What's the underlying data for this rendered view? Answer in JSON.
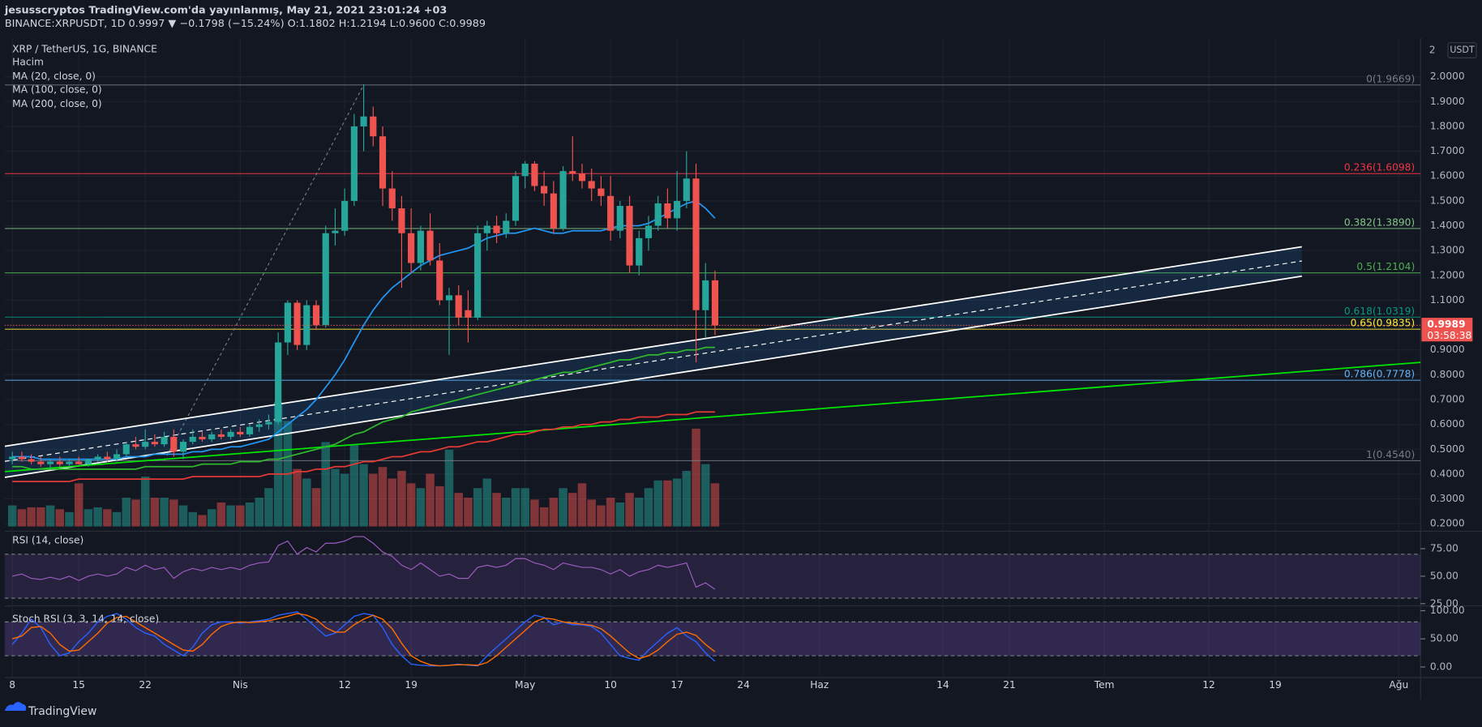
{
  "header": {
    "line1": "jesusscryptos TradingView.com'da yayınlanmış, May 21, 2021 23:01:24 +03",
    "line2": "BINANCE:XRPUSDT, 1D 0.9997 ▼ −0.1798 (−15.24%) O:1.1802 H:1.2194 L:0.9600 C:0.9989"
  },
  "chart_data": {
    "type": "candlestick",
    "title": "XRP / TetherUS, 1G, BINANCE",
    "y_axis_mode": "2",
    "y_axis_unit": "USDT",
    "grid": true,
    "up_color": "#26a69a",
    "down_color": "#ef5350",
    "xlim": [
      -0.8,
      148.3
    ],
    "xticks": [
      {
        "value": 0,
        "label": "8"
      },
      {
        "value": 7,
        "label": "15"
      },
      {
        "value": 14,
        "label": "22"
      },
      {
        "value": 24,
        "label": "Nis"
      },
      {
        "value": 35,
        "label": "12"
      },
      {
        "value": 42,
        "label": "19"
      },
      {
        "value": 54,
        "label": "May"
      },
      {
        "value": 63,
        "label": "10"
      },
      {
        "value": 70,
        "label": "17"
      },
      {
        "value": 77,
        "label": "24"
      },
      {
        "value": 85,
        "label": "Haz"
      },
      {
        "value": 98,
        "label": "14"
      },
      {
        "value": 105,
        "label": "21"
      },
      {
        "value": 115,
        "label": "Tem"
      },
      {
        "value": 126,
        "label": "12"
      },
      {
        "value": 133,
        "label": "19"
      },
      {
        "value": 146,
        "label": "Ağu"
      }
    ],
    "ylim": [
      0.17,
      2.156
    ],
    "yticks": [
      {
        "value": 0.2,
        "label": "0.2000"
      },
      {
        "value": 0.3,
        "label": "0.3000"
      },
      {
        "value": 0.4,
        "label": "0.4000"
      },
      {
        "value": 0.5,
        "label": "0.5000"
      },
      {
        "value": 0.6,
        "label": "0.6000"
      },
      {
        "value": 0.7,
        "label": "0.7000"
      },
      {
        "value": 0.8,
        "label": "0.8000"
      },
      {
        "value": 0.9,
        "label": "0.9000"
      },
      {
        "value": 1.0,
        "label": "1.0000"
      },
      {
        "value": 1.1,
        "label": "1.1000"
      },
      {
        "value": 1.2,
        "label": "1.2000"
      },
      {
        "value": 1.3,
        "label": "1.3000"
      },
      {
        "value": 1.4,
        "label": "1.4000"
      },
      {
        "value": 1.5,
        "label": "1.5000"
      },
      {
        "value": 1.6,
        "label": "1.6000"
      },
      {
        "value": 1.7,
        "label": "1.7000"
      },
      {
        "value": 1.8,
        "label": "1.8000"
      },
      {
        "value": 1.9,
        "label": "1.9000"
      },
      {
        "value": 2.0,
        "label": "2.0000"
      }
    ],
    "x": [
      0,
      1,
      2,
      3,
      4,
      5,
      6,
      7,
      8,
      9,
      10,
      11,
      12,
      13,
      14,
      15,
      16,
      17,
      18,
      19,
      20,
      21,
      22,
      23,
      24,
      25,
      26,
      27,
      28,
      29,
      30,
      31,
      32,
      33,
      34,
      35,
      36,
      37,
      38,
      39,
      40,
      41,
      42,
      43,
      44,
      45,
      46,
      47,
      48,
      49,
      50,
      51,
      52,
      53,
      54,
      55,
      56,
      57,
      58,
      59,
      60,
      61,
      62,
      63,
      64,
      65,
      66,
      67,
      68,
      69,
      70,
      71,
      72,
      73,
      74
    ],
    "open": [
      0.46,
      0.47,
      0.46,
      0.45,
      0.44,
      0.45,
      0.44,
      0.45,
      0.44,
      0.46,
      0.47,
      0.46,
      0.48,
      0.52,
      0.51,
      0.53,
      0.52,
      0.55,
      0.49,
      0.53,
      0.55,
      0.54,
      0.56,
      0.55,
      0.57,
      0.56,
      0.59,
      0.6,
      0.61,
      0.93,
      1.09,
      0.92,
      1.08,
      1.0,
      1.37,
      1.38,
      1.5,
      1.8,
      1.84,
      1.76,
      1.55,
      1.47,
      1.37,
      1.25,
      1.38,
      1.26,
      1.1,
      1.12,
      1.06,
      1.03,
      1.37,
      1.4,
      1.37,
      1.42,
      1.6,
      1.65,
      1.56,
      1.53,
      1.39,
      1.62,
      1.61,
      1.58,
      1.55,
      1.52,
      1.38,
      1.48,
      1.24,
      1.35,
      1.4,
      1.49,
      1.43,
      1.5,
      1.59,
      1.06,
      1.1802
    ],
    "high": [
      0.49,
      0.49,
      0.48,
      0.47,
      0.46,
      0.47,
      0.46,
      0.47,
      0.46,
      0.48,
      0.49,
      0.5,
      0.53,
      0.55,
      0.58,
      0.56,
      0.57,
      0.58,
      0.54,
      0.58,
      0.57,
      0.57,
      0.58,
      0.58,
      0.59,
      0.6,
      0.62,
      0.64,
      0.97,
      1.1,
      1.1,
      1.1,
      1.1,
      1.4,
      1.47,
      1.55,
      1.85,
      1.97,
      1.88,
      1.8,
      1.62,
      1.52,
      1.47,
      1.4,
      1.45,
      1.33,
      1.15,
      1.16,
      1.14,
      1.4,
      1.42,
      1.44,
      1.45,
      1.62,
      1.66,
      1.66,
      1.62,
      1.58,
      1.64,
      1.76,
      1.65,
      1.63,
      1.6,
      1.6,
      1.5,
      1.52,
      1.38,
      1.44,
      1.52,
      1.55,
      1.62,
      1.7,
      1.65,
      1.25,
      1.2194
    ],
    "low": [
      0.44,
      0.45,
      0.44,
      0.43,
      0.42,
      0.43,
      0.43,
      0.44,
      0.43,
      0.45,
      0.45,
      0.45,
      0.47,
      0.5,
      0.5,
      0.51,
      0.51,
      0.47,
      0.46,
      0.52,
      0.53,
      0.53,
      0.54,
      0.54,
      0.55,
      0.55,
      0.57,
      0.58,
      0.6,
      0.88,
      0.9,
      0.9,
      0.98,
      0.99,
      1.32,
      1.36,
      1.48,
      1.7,
      1.72,
      1.48,
      1.42,
      1.15,
      1.21,
      1.22,
      1.24,
      1.08,
      0.88,
      1.0,
      0.93,
      1.02,
      1.3,
      1.33,
      1.35,
      1.4,
      1.55,
      1.54,
      1.48,
      1.37,
      1.38,
      1.58,
      1.55,
      1.5,
      1.48,
      1.34,
      1.35,
      1.21,
      1.2,
      1.3,
      1.38,
      1.39,
      1.38,
      1.47,
      0.85,
      0.95,
      0.96
    ],
    "close": [
      0.47,
      0.46,
      0.45,
      0.44,
      0.45,
      0.44,
      0.45,
      0.44,
      0.46,
      0.47,
      0.46,
      0.48,
      0.52,
      0.51,
      0.53,
      0.52,
      0.55,
      0.49,
      0.53,
      0.55,
      0.54,
      0.56,
      0.55,
      0.57,
      0.56,
      0.59,
      0.6,
      0.61,
      0.93,
      1.09,
      0.92,
      1.08,
      1.0,
      1.37,
      1.38,
      1.5,
      1.8,
      1.84,
      1.76,
      1.55,
      1.47,
      1.37,
      1.25,
      1.38,
      1.26,
      1.1,
      1.12,
      1.03,
      1.03,
      1.37,
      1.4,
      1.37,
      1.42,
      1.6,
      1.65,
      1.56,
      1.53,
      1.39,
      1.62,
      1.61,
      1.58,
      1.55,
      1.52,
      1.38,
      1.48,
      1.24,
      1.35,
      1.4,
      1.49,
      1.43,
      1.5,
      1.59,
      1.06,
      1.18,
      0.9989
    ],
    "volume": {
      "name": "Hacim",
      "values": [
        22,
        18,
        20,
        20,
        22,
        18,
        15,
        45,
        18,
        20,
        18,
        15,
        30,
        28,
        52,
        30,
        30,
        28,
        22,
        15,
        12,
        18,
        25,
        22,
        22,
        25,
        30,
        40,
        130,
        110,
        60,
        50,
        40,
        88,
        60,
        55,
        85,
        65,
        55,
        62,
        50,
        58,
        45,
        40,
        55,
        42,
        80,
        35,
        30,
        40,
        50,
        35,
        30,
        40,
        40,
        28,
        20,
        30,
        40,
        35,
        45,
        28,
        22,
        30,
        25,
        35,
        30,
        40,
        48,
        48,
        50,
        58,
        102,
        65,
        45
      ]
    },
    "series": [
      {
        "name": "MA (20, close, 0)",
        "color": "#2196f3",
        "values": [
          0.47,
          0.47,
          0.47,
          0.46,
          0.46,
          0.46,
          0.46,
          0.46,
          0.46,
          0.46,
          0.46,
          0.46,
          0.47,
          0.47,
          0.47,
          0.48,
          0.48,
          0.48,
          0.48,
          0.49,
          0.49,
          0.5,
          0.5,
          0.51,
          0.51,
          0.52,
          0.53,
          0.54,
          0.57,
          0.6,
          0.63,
          0.66,
          0.7,
          0.75,
          0.8,
          0.86,
          0.93,
          1.0,
          1.06,
          1.11,
          1.15,
          1.18,
          1.21,
          1.24,
          1.26,
          1.28,
          1.29,
          1.3,
          1.31,
          1.33,
          1.35,
          1.36,
          1.37,
          1.37,
          1.38,
          1.39,
          1.38,
          1.37,
          1.37,
          1.38,
          1.38,
          1.38,
          1.38,
          1.39,
          1.4,
          1.4,
          1.4,
          1.41,
          1.43,
          1.45,
          1.47,
          1.49,
          1.5,
          1.47,
          1.43
        ]
      },
      {
        "name": "MA (100, close, 0)",
        "color": "#2eb82e",
        "values": [
          0.43,
          0.43,
          0.42,
          0.42,
          0.42,
          0.42,
          0.42,
          0.42,
          0.42,
          0.42,
          0.42,
          0.42,
          0.42,
          0.42,
          0.43,
          0.43,
          0.43,
          0.43,
          0.43,
          0.43,
          0.44,
          0.44,
          0.44,
          0.44,
          0.45,
          0.45,
          0.45,
          0.46,
          0.46,
          0.47,
          0.48,
          0.49,
          0.5,
          0.51,
          0.52,
          0.54,
          0.56,
          0.57,
          0.59,
          0.61,
          0.62,
          0.63,
          0.65,
          0.66,
          0.67,
          0.68,
          0.69,
          0.7,
          0.71,
          0.72,
          0.73,
          0.74,
          0.75,
          0.76,
          0.77,
          0.78,
          0.79,
          0.8,
          0.81,
          0.81,
          0.82,
          0.83,
          0.84,
          0.85,
          0.86,
          0.86,
          0.87,
          0.88,
          0.88,
          0.89,
          0.89,
          0.9,
          0.9,
          0.91,
          0.91
        ]
      },
      {
        "name": "MA (200, close, 0)",
        "color": "#e53935",
        "values": [
          0.37,
          0.37,
          0.37,
          0.37,
          0.37,
          0.37,
          0.37,
          0.38,
          0.38,
          0.38,
          0.38,
          0.38,
          0.38,
          0.38,
          0.38,
          0.38,
          0.38,
          0.38,
          0.38,
          0.39,
          0.39,
          0.39,
          0.39,
          0.39,
          0.39,
          0.39,
          0.39,
          0.4,
          0.4,
          0.4,
          0.41,
          0.41,
          0.42,
          0.42,
          0.43,
          0.43,
          0.44,
          0.45,
          0.45,
          0.46,
          0.47,
          0.47,
          0.48,
          0.49,
          0.49,
          0.5,
          0.51,
          0.51,
          0.52,
          0.53,
          0.53,
          0.54,
          0.55,
          0.56,
          0.56,
          0.57,
          0.58,
          0.58,
          0.59,
          0.59,
          0.6,
          0.6,
          0.61,
          0.61,
          0.62,
          0.62,
          0.63,
          0.63,
          0.63,
          0.64,
          0.64,
          0.64,
          0.65,
          0.65,
          0.65
        ]
      }
    ],
    "fib_levels": [
      {
        "label": "0(1.9669)",
        "value": 1.9669,
        "color": "#787b86"
      },
      {
        "label": "0.236(1.6098)",
        "value": 1.6098,
        "color": "#f23645"
      },
      {
        "label": "0.382(1.3890)",
        "value": 1.389,
        "color": "#81c784"
      },
      {
        "label": "0.5(1.2104)",
        "value": 1.2104,
        "color": "#4caf50"
      },
      {
        "label": "0.618(1.0319)",
        "value": 1.0319,
        "color": "#089981"
      },
      {
        "label": "0.65(0.9835)",
        "value": 0.9835,
        "color": "#ffeb3b"
      },
      {
        "label": "0.786(0.7778)",
        "value": 0.7778,
        "color": "#64b5f6"
      },
      {
        "label": "1(0.4540)",
        "value": 0.454,
        "color": "#787b86"
      }
    ],
    "fib_diagonal": {
      "x": [
        16,
        37
      ],
      "y": [
        0.454,
        1.9669
      ]
    },
    "channel": {
      "x": [
        -0.8,
        135.8
      ],
      "upper": [
        0.512,
        1.315
      ],
      "middle": [
        0.451,
        1.258
      ],
      "lower": [
        0.387,
        1.197
      ],
      "color": "#2196f3"
    },
    "trend_line": {
      "x": [
        -0.8,
        148.3
      ],
      "y": [
        0.41,
        0.85
      ],
      "color": "#00e600"
    },
    "last_price": {
      "value": 0.9989,
      "label": "0.9989",
      "countdown": "03:58:38",
      "color": "#ef5350"
    },
    "rsi": {
      "name": "RSI (14, close)",
      "color": "#9c5cc0",
      "ylim": [
        23,
        90.9
      ],
      "band": [
        30,
        70
      ],
      "yticks": [
        {
          "value": 75,
          "label": "75.00"
        },
        {
          "value": 50,
          "label": "50.00"
        },
        {
          "value": 25,
          "label": "25.00"
        }
      ],
      "values": [
        50,
        52,
        48,
        47,
        49,
        47,
        50,
        46,
        50,
        52,
        50,
        52,
        58,
        55,
        60,
        56,
        58,
        48,
        54,
        57,
        55,
        58,
        56,
        58,
        56,
        60,
        62,
        63,
        78,
        82,
        70,
        76,
        72,
        80,
        80,
        82,
        86,
        86,
        80,
        72,
        68,
        60,
        56,
        62,
        56,
        50,
        52,
        48,
        48,
        58,
        60,
        58,
        60,
        66,
        66,
        62,
        60,
        56,
        62,
        60,
        58,
        58,
        56,
        52,
        56,
        50,
        54,
        56,
        60,
        58,
        60,
        62,
        40,
        44,
        38
      ]
    },
    "stoch_rsi": {
      "name": "Stoch RSI (3, 3, 14, 14, close)",
      "ylim": [
        -19,
        108.6
      ],
      "band": [
        20,
        80
      ],
      "yticks": [
        {
          "value": 100,
          "label": "100.00"
        },
        {
          "value": 50,
          "label": "50.00"
        },
        {
          "value": 0,
          "label": "0.00"
        }
      ],
      "k": {
        "color": "#2962ff",
        "values": [
          40,
          60,
          85,
          70,
          40,
          20,
          25,
          45,
          60,
          80,
          90,
          95,
          85,
          70,
          60,
          55,
          40,
          30,
          20,
          35,
          60,
          75,
          80,
          80,
          78,
          80,
          82,
          85,
          92,
          95,
          98,
          85,
          70,
          55,
          60,
          75,
          90,
          95,
          92,
          70,
          40,
          20,
          5,
          3,
          2,
          2,
          3,
          5,
          3,
          2,
          20,
          35,
          50,
          65,
          80,
          92,
          88,
          75,
          80,
          75,
          75,
          72,
          60,
          40,
          20,
          15,
          12,
          30,
          45,
          60,
          70,
          55,
          45,
          25,
          10
        ]
      },
      "d": {
        "color": "#ff6d00",
        "values": [
          50,
          55,
          70,
          72,
          60,
          40,
          28,
          30,
          45,
          60,
          78,
          88,
          90,
          80,
          70,
          60,
          50,
          40,
          30,
          28,
          40,
          58,
          72,
          78,
          80,
          79,
          80,
          82,
          86,
          90,
          95,
          92,
          85,
          70,
          62,
          62,
          75,
          85,
          92,
          85,
          68,
          42,
          20,
          10,
          4,
          2,
          3,
          4,
          4,
          3,
          8,
          20,
          35,
          50,
          65,
          80,
          87,
          85,
          80,
          78,
          76,
          74,
          68,
          55,
          40,
          25,
          15,
          20,
          30,
          45,
          58,
          62,
          56,
          40,
          27
        ]
      }
    }
  },
  "footer": {
    "brand": "TradingView"
  }
}
